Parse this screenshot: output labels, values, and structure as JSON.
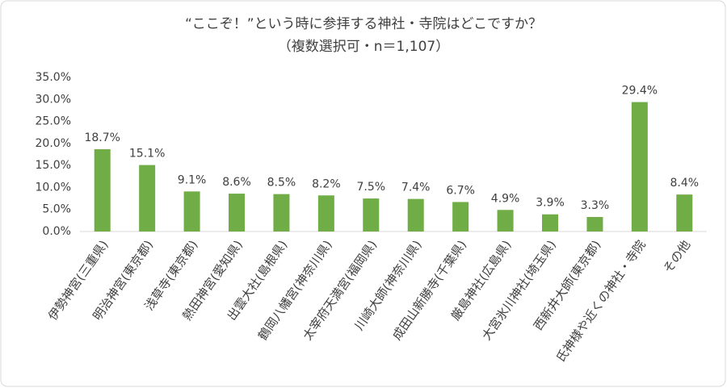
{
  "chart_data": {
    "type": "bar",
    "title": "“ここぞ！”という時に参拝する神社・寺院はどこですか？",
    "subtitle": "（複数選択可・n＝1,107）",
    "categories": [
      "伊勢神宮(三重県)",
      "明治神宮(東京都)",
      "浅草寺(東京都)",
      "熱田神宮(愛知県)",
      "出雲大社(島根県)",
      "鶴岡八幡宮(神奈川県)",
      "太宰府天満宮(福岡県)",
      "川崎大師(神奈川県)",
      "成田山新勝寺(千葉県)",
      "厳島神社(広島県)",
      "大宮氷川神社(埼玉県)",
      "西新井大師(東京都)",
      "氏神様や近くの神社・寺院",
      "その他"
    ],
    "values": [
      18.7,
      15.1,
      9.1,
      8.6,
      8.5,
      8.2,
      7.5,
      7.4,
      6.7,
      4.9,
      3.9,
      3.3,
      29.4,
      8.4
    ],
    "value_labels": [
      "18.7%",
      "15.1%",
      "9.1%",
      "8.6%",
      "8.5%",
      "8.2%",
      "7.5%",
      "7.4%",
      "6.7%",
      "4.9%",
      "3.9%",
      "3.3%",
      "29.4%",
      "8.4%"
    ],
    "color": "#70ad47",
    "ylim": [
      0,
      35
    ],
    "yticks": [
      {
        "value": 0,
        "label": "0.0%"
      },
      {
        "value": 5,
        "label": "5.0%"
      },
      {
        "value": 10,
        "label": "10.0%"
      },
      {
        "value": 15,
        "label": "15.0%"
      },
      {
        "value": 20,
        "label": "20.0%"
      },
      {
        "value": 25,
        "label": "25.0%"
      },
      {
        "value": 30,
        "label": "30.0%"
      },
      {
        "value": 35,
        "label": "35.0%"
      }
    ],
    "grid": false
  }
}
